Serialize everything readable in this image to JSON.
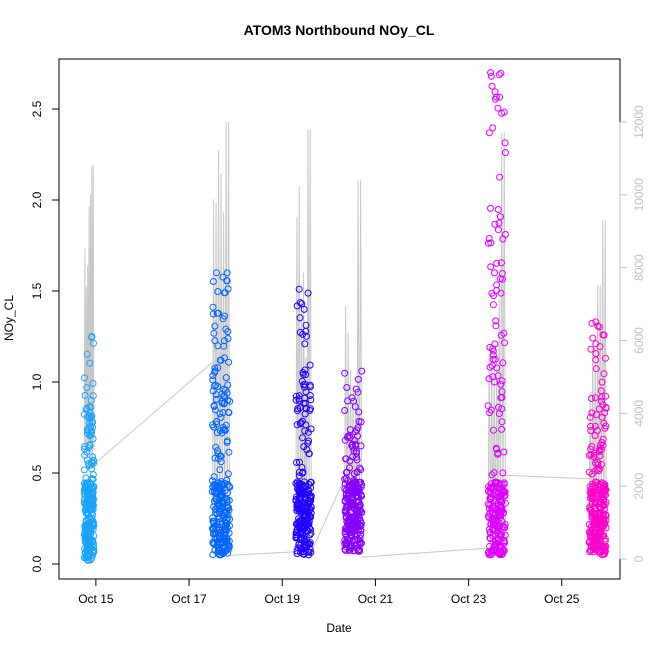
{
  "chart_data": {
    "type": "scatter",
    "title": "ATOM3 Northbound NOy_CL",
    "xlabel": "Date",
    "ylabel": "NOy_CL",
    "x_tick_labels": [
      "Oct 15",
      "Oct 17",
      "Oct 19",
      "Oct 21",
      "Oct 23",
      "Oct 25"
    ],
    "x_tick_dates": [
      "2017-10-15",
      "2017-10-17",
      "2017-10-19",
      "2017-10-21",
      "2017-10-23",
      "2017-10-25"
    ],
    "xlim": [
      "2017-10-14T05:00",
      "2017-10-26T06:00"
    ],
    "ylim": [
      0.0,
      2.7
    ],
    "y_ticks": [
      0.0,
      0.5,
      1.0,
      1.5,
      2.0,
      2.5
    ],
    "y_tick_labels": [
      "0.0",
      "0.5",
      "1.0",
      "1.5",
      "2.0",
      "2.5"
    ],
    "right_axis": {
      "color": "#c0c0c0",
      "ylim": [
        0,
        12100
      ],
      "ticks": [
        0,
        2000,
        4000,
        6000,
        8000,
        10000,
        12000
      ],
      "tick_labels": [
        "0",
        "2000",
        "4000",
        "6000",
        "8000",
        "10000",
        "12000"
      ]
    },
    "grid": false,
    "legend": "none",
    "series": [
      {
        "date": "Oct 14-15",
        "color": "#1aa3ff",
        "start": "2017-10-14T18:00",
        "end": "2017-10-14T23:00",
        "min": 0.02,
        "max": 1.25
      },
      {
        "date": "Oct 17-18",
        "color": "#0066ff",
        "start": "2017-10-17T12:00",
        "end": "2017-10-17T21:00",
        "min": 0.05,
        "max": 1.6
      },
      {
        "date": "Oct 19-20",
        "color": "#2200ff",
        "start": "2017-10-19T07:00",
        "end": "2017-10-19T15:00",
        "min": 0.05,
        "max": 1.51
      },
      {
        "date": "Oct 20-21",
        "color": "#8800ff",
        "start": "2017-10-20T08:00",
        "end": "2017-10-20T17:00",
        "min": 0.07,
        "max": 1.06
      },
      {
        "date": "Oct 23-24",
        "color": "#dd00ff",
        "start": "2017-10-23T10:00",
        "end": "2017-10-23T19:00",
        "min": 0.05,
        "max": 2.7
      },
      {
        "date": "Oct 25-26",
        "color": "#ff00cc",
        "start": "2017-10-25T14:00",
        "end": "2017-10-25T23:00",
        "min": 0.05,
        "max": 1.33
      }
    ],
    "altitude_line": {
      "color": "#c8c8c8",
      "unit_axis": "right",
      "segments": [
        {
          "start": "2017-10-14T18:00",
          "end": "2017-10-14T23:00",
          "base": 2600,
          "peak": 10800
        },
        {
          "start": "2017-10-17T12:00",
          "end": "2017-10-17T21:00",
          "base": 100,
          "peak": 12000
        },
        {
          "start": "2017-10-19T07:00",
          "end": "2017-10-19T15:00",
          "base": 200,
          "peak": 11800
        },
        {
          "start": "2017-10-20T08:00",
          "end": "2017-10-20T17:00",
          "base": 200,
          "peak": 10400
        },
        {
          "start": "2017-10-23T10:00",
          "end": "2017-10-23T19:00",
          "base": 300,
          "peak": 11700
        },
        {
          "start": "2017-10-25T14:00",
          "end": "2017-10-25T23:00",
          "base": 200,
          "peak": 9300
        }
      ],
      "connectors": [
        [
          "2017-10-14T23:00",
          2600,
          "2017-10-17T12:00",
          5400
        ],
        [
          "2017-10-17T21:00",
          100,
          "2017-10-19T07:00",
          200
        ],
        [
          "2017-10-19T15:00",
          200,
          "2017-10-20T08:00",
          2200
        ],
        [
          "2017-10-20T17:00",
          50,
          "2017-10-23T10:00",
          300
        ],
        [
          "2017-10-23T19:00",
          2300,
          "2017-10-25T14:00",
          2200
        ]
      ]
    }
  }
}
